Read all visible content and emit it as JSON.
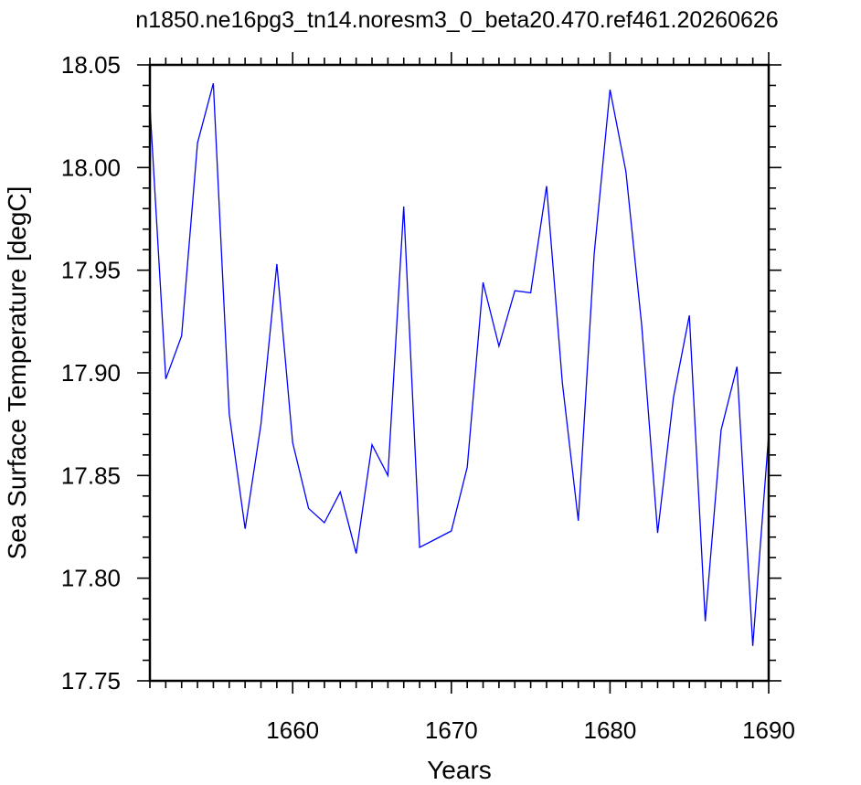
{
  "chart_data": {
    "type": "line",
    "title": "n1850.ne16pg3_tn14.noresm3_0_beta20.470.ref461.20260626",
    "xlabel": "Years",
    "ylabel": "Sea Surface Temperature [degC]",
    "xlim": [
      1651,
      1690
    ],
    "ylim": [
      17.75,
      18.05
    ],
    "x_major_ticks": [
      1660,
      1670,
      1680,
      1690
    ],
    "x_tick_labels": [
      "1660",
      "1670",
      "1680",
      "1690"
    ],
    "x_minor_step": 1,
    "y_major_ticks": [
      17.75,
      17.8,
      17.85,
      17.9,
      17.95,
      18.0,
      18.05
    ],
    "y_tick_labels": [
      "17.75",
      "17.80",
      "17.85",
      "17.90",
      "17.95",
      "18.00",
      "18.05"
    ],
    "y_minor_step": 0.01,
    "grid": false,
    "line_color": "#0000ff",
    "series": [
      {
        "x": [
          1651,
          1652,
          1653,
          1654,
          1655,
          1656,
          1657,
          1658,
          1659,
          1660,
          1661,
          1662,
          1663,
          1664,
          1665,
          1666,
          1667,
          1668,
          1669,
          1670,
          1671,
          1672,
          1673,
          1674,
          1675,
          1676,
          1677,
          1678,
          1679,
          1680,
          1681,
          1682,
          1683,
          1684,
          1685,
          1686,
          1687,
          1688,
          1689,
          1690
        ],
        "values": [
          18.03,
          17.897,
          17.918,
          18.012,
          18.041,
          17.88,
          17.824,
          17.875,
          17.953,
          17.866,
          17.834,
          17.827,
          17.842,
          17.812,
          17.865,
          17.85,
          17.981,
          17.815,
          17.819,
          17.823,
          17.854,
          17.944,
          17.913,
          17.94,
          17.939,
          17.991,
          17.895,
          17.828,
          17.958,
          18.038,
          17.998,
          17.923,
          17.822,
          17.888,
          17.928,
          17.779,
          17.872,
          17.903,
          17.767,
          17.87
        ]
      }
    ]
  }
}
